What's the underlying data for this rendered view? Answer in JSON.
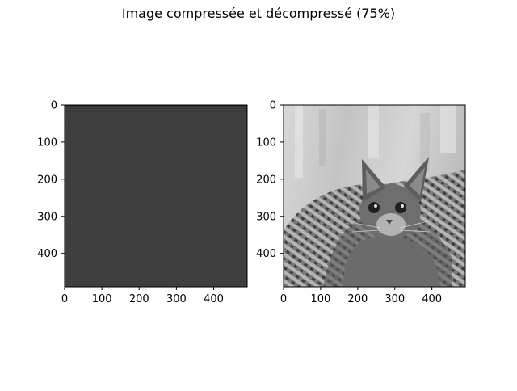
{
  "figure": {
    "title": "Image compressée et décompressé (75%)"
  },
  "chart_data": [
    {
      "type": "image",
      "panel": "left",
      "title": "",
      "xlabel": "",
      "ylabel": "",
      "xlim": [
        0,
        490
      ],
      "ylim": [
        490,
        0
      ],
      "xticks": [
        0,
        100,
        200,
        300,
        400
      ],
      "yticks": [
        0,
        100,
        200,
        300,
        400
      ],
      "xtick_labels": [
        "0",
        "100",
        "200",
        "300",
        "400"
      ],
      "ytick_labels": [
        "0",
        "100",
        "200",
        "300",
        "400"
      ],
      "colormap": "gray",
      "content": "uniform dark gray field with faint horizontal banding near the top",
      "fill_color": "#3f3f3f"
    },
    {
      "type": "image",
      "panel": "right",
      "title": "",
      "xlabel": "",
      "ylabel": "",
      "xlim": [
        0,
        490
      ],
      "ylim": [
        490,
        0
      ],
      "xticks": [
        0,
        100,
        200,
        300,
        400
      ],
      "yticks": [
        0,
        100,
        200,
        300,
        400
      ],
      "xtick_labels": [
        "0",
        "100",
        "200",
        "300",
        "400"
      ],
      "ytick_labels": [
        "0",
        "100",
        "200",
        "300",
        "400"
      ],
      "colormap": "gray",
      "content": "grayscale photograph of a kitten in a woven hat"
    }
  ]
}
